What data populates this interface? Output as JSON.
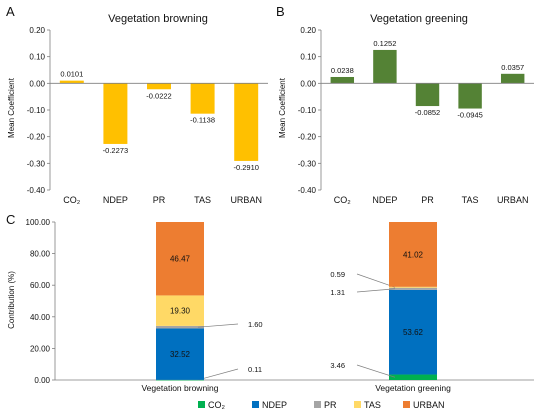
{
  "panel_labels": [
    "A",
    "B",
    "C"
  ],
  "colors": {
    "browning_bar": "#FFC000",
    "greening_bar": "#548235",
    "axis": "#7f7f7f",
    "stack": [
      "#00B050",
      "#0070C0",
      "#A5A5A5",
      "#FFD966",
      "#ED7D31"
    ]
  },
  "chart_data": [
    {
      "id": "A",
      "type": "bar",
      "title": "Vegetation browning",
      "ylabel": "Mean Coefficient",
      "xlabel": "",
      "categories": [
        "CO₂",
        "NDEP",
        "PR",
        "TAS",
        "URBAN"
      ],
      "values": [
        0.0101,
        -0.2273,
        -0.0222,
        -0.1138,
        -0.291
      ],
      "value_labels": [
        "0.0101",
        "-0.2273",
        "-0.0222",
        "-0.1138",
        "-0.2910"
      ],
      "ylim": [
        -0.4,
        0.2
      ],
      "yticks": [
        0.2,
        0.1,
        0.0,
        -0.1,
        -0.2,
        -0.3,
        -0.4
      ],
      "ytick_labels": [
        "0.20",
        "0.10",
        "0.00",
        "-0.10",
        "-0.20",
        "-0.30",
        "-0.40"
      ],
      "grid": false
    },
    {
      "id": "B",
      "type": "bar",
      "title": "Vegetation greening",
      "ylabel": "Mean Coefficient",
      "xlabel": "",
      "categories": [
        "CO₂",
        "NDEP",
        "PR",
        "TAS",
        "URBAN"
      ],
      "values": [
        0.0238,
        0.1252,
        -0.0852,
        -0.0945,
        0.0357
      ],
      "value_labels": [
        "0.0238",
        "0.1252",
        "-0.0852",
        "-0.0945",
        "0.0357"
      ],
      "ylim": [
        -0.4,
        0.2
      ],
      "yticks": [
        0.2,
        0.1,
        0.0,
        -0.1,
        -0.2,
        -0.3,
        -0.4
      ],
      "ytick_labels": [
        "0.20",
        "0.10",
        "0.00",
        "-0.10",
        "-0.20",
        "-0.30",
        "-0.40"
      ],
      "grid": false
    },
    {
      "id": "C",
      "type": "bar",
      "stacked": true,
      "ylabel": "Contribution (%)",
      "xlabel": "",
      "categories": [
        "Vegetation browning",
        "Vegetation greening"
      ],
      "series": [
        {
          "name": "CO₂",
          "values": [
            0.11,
            3.46
          ],
          "labels": [
            "0.11",
            "3.46"
          ]
        },
        {
          "name": "NDEP",
          "values": [
            32.52,
            53.62
          ],
          "labels": [
            "32.52",
            "53.62"
          ]
        },
        {
          "name": "PR",
          "values": [
            1.6,
            1.31
          ],
          "labels": [
            "1.60",
            "1.31"
          ]
        },
        {
          "name": "TAS",
          "values": [
            19.3,
            0.59
          ],
          "labels": [
            "19.30",
            "0.59"
          ]
        },
        {
          "name": "URBAN",
          "values": [
            46.47,
            41.02
          ],
          "labels": [
            "46.47",
            "41.02"
          ]
        }
      ],
      "ylim": [
        0,
        100
      ],
      "yticks": [
        0,
        20,
        40,
        60,
        80,
        100
      ],
      "ytick_labels": [
        "0.00",
        "20.00",
        "40.00",
        "60.00",
        "80.00",
        "100.00"
      ],
      "legend_position": "bottom",
      "grid": false
    }
  ]
}
